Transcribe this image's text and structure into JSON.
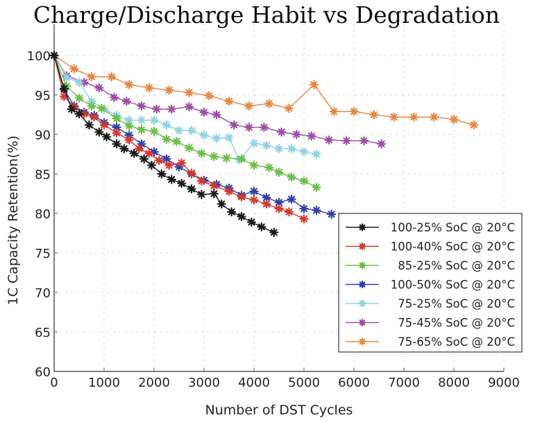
{
  "chart_data": {
    "type": "line",
    "title": "Charge/Discharge Habit vs Degradation",
    "xlabel": "Number of DST Cycles",
    "ylabel": "1C Capacity Retention(%)",
    "xlim": [
      0,
      9000
    ],
    "ylim": [
      60,
      100
    ],
    "xticks": [
      "0",
      "1000",
      "2000",
      "3000",
      "4000",
      "5000",
      "6000",
      "7000",
      "8000",
      "9000"
    ],
    "yticks": [
      "60",
      "65",
      "70",
      "75",
      "80",
      "85",
      "90",
      "95",
      "100"
    ],
    "grid": true,
    "legend_position": "bottom-right",
    "series": [
      {
        "name": "100-25% SoC @ 20°C",
        "color": "#1a1a1a",
        "x": [
          0,
          200,
          350,
          500,
          700,
          900,
          1050,
          1250,
          1400,
          1600,
          1800,
          1950,
          2150,
          2350,
          2550,
          2750,
          2950,
          3200,
          3350,
          3550,
          3750,
          3950,
          4150,
          4400
        ],
        "y": [
          100,
          95.8,
          93.2,
          92.6,
          91.2,
          90.3,
          89.7,
          88.8,
          88.2,
          87.6,
          86.9,
          86.1,
          85.0,
          84.3,
          83.8,
          83.1,
          82.4,
          82.5,
          81.2,
          80.2,
          79.6,
          78.9,
          78.3,
          77.6
        ]
      },
      {
        "name": "100-40% SoC @ 20°C",
        "color": "#d2382e",
        "x": [
          0,
          200,
          400,
          600,
          800,
          1000,
          1250,
          1500,
          1700,
          1900,
          2100,
          2300,
          2550,
          2750,
          2950,
          3200,
          3500,
          3750,
          4000,
          4250,
          4500,
          4700,
          5000
        ],
        "y": [
          100,
          94.8,
          93.5,
          92.6,
          92.2,
          91.2,
          90.2,
          89.3,
          88.2,
          87.6,
          86.7,
          86.1,
          86.4,
          85.1,
          84.1,
          83.5,
          82.8,
          82.1,
          81.7,
          81.2,
          80.6,
          80.2,
          79.3
        ]
      },
      {
        "name": "85-25% SoC @ 20°C",
        "color": "#6abf45",
        "x": [
          0,
          250,
          500,
          750,
          950,
          1250,
          1500,
          1750,
          2000,
          2250,
          2450,
          2700,
          2950,
          3200,
          3450,
          3750,
          4000,
          4300,
          4500,
          4750,
          5000,
          5250
        ],
        "y": [
          100,
          96.1,
          94.6,
          93.6,
          93.3,
          92.0,
          91.1,
          90.6,
          90.4,
          89.4,
          89.1,
          88.3,
          87.6,
          87.2,
          87.0,
          86.9,
          86.1,
          85.8,
          85.2,
          84.6,
          84.1,
          83.3
        ]
      },
      {
        "name": "100-50% SoC @ 20°C",
        "color": "#2f3fa8",
        "x": [
          0,
          200,
          400,
          600,
          800,
          1000,
          1250,
          1500,
          1750,
          2000,
          2250,
          2500,
          2750,
          3000,
          3250,
          3500,
          3750,
          4000,
          4250,
          4500,
          4750,
          5000,
          5250,
          5550
        ],
        "y": [
          100,
          95.7,
          93.6,
          92.8,
          92.4,
          91.5,
          90.9,
          89.9,
          88.8,
          87.8,
          86.9,
          85.9,
          85.0,
          84.2,
          83.7,
          83.2,
          82.3,
          82.8,
          82.0,
          81.4,
          81.8,
          80.6,
          80.4,
          79.9
        ]
      },
      {
        "name": "75-25% SoC @ 20°C",
        "color": "#8fd3e3",
        "x": [
          0,
          250,
          500,
          750,
          1000,
          1250,
          1500,
          1750,
          2000,
          2250,
          2500,
          2750,
          3000,
          3250,
          3500,
          3700,
          4000,
          4250,
          4500,
          4750,
          5000,
          5250
        ],
        "y": [
          100,
          97.2,
          96.6,
          94.2,
          93.2,
          92.4,
          91.8,
          91.8,
          91.8,
          91.2,
          90.5,
          90.5,
          89.9,
          89.5,
          89.6,
          86.8,
          88.9,
          88.6,
          88.2,
          88.2,
          87.8,
          87.5
        ]
      },
      {
        "name": "75-45% SoC @ 20°C",
        "color": "#9b4ea3",
        "x": [
          0,
          250,
          600,
          900,
          1200,
          1450,
          1750,
          2050,
          2350,
          2700,
          3000,
          3250,
          3600,
          3900,
          4200,
          4550,
          4850,
          5150,
          5500,
          5850,
          6200,
          6550
        ],
        "y": [
          100,
          97.4,
          96.6,
          95.9,
          94.7,
          94.2,
          93.6,
          93.2,
          93.2,
          93.5,
          92.8,
          92.5,
          91.2,
          90.9,
          90.9,
          90.3,
          90.0,
          89.8,
          89.3,
          89.2,
          89.2,
          88.8
        ]
      },
      {
        "name": "75-65% SoC @ 20°C",
        "color": "#e8853d",
        "x": [
          0,
          400,
          750,
          1150,
          1500,
          1900,
          2300,
          2700,
          3100,
          3500,
          3900,
          4300,
          4700,
          5200,
          5600,
          6000,
          6400,
          6800,
          7200,
          7600,
          8000,
          8400
        ],
        "y": [
          100,
          98.3,
          97.3,
          97.3,
          96.3,
          95.9,
          95.6,
          95.3,
          94.9,
          94.2,
          93.6,
          93.9,
          93.3,
          96.3,
          92.9,
          92.9,
          92.5,
          92.2,
          92.2,
          92.2,
          91.9,
          91.2
        ]
      }
    ]
  }
}
